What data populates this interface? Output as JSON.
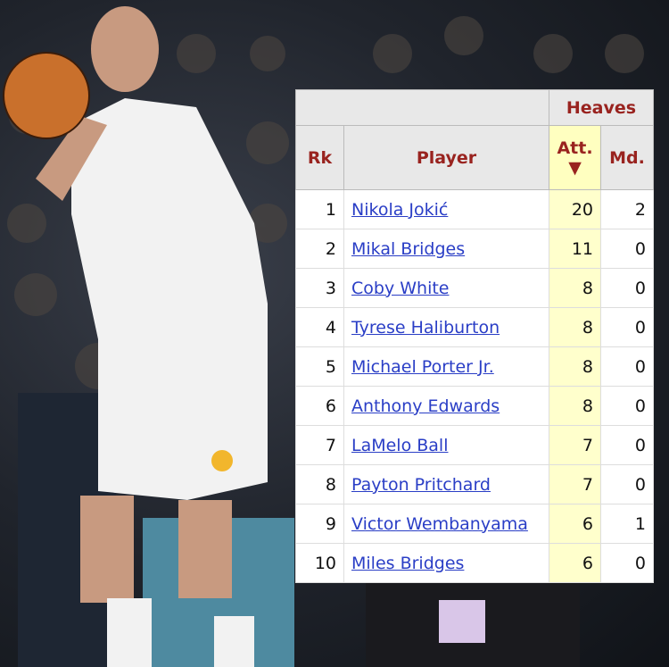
{
  "table": {
    "group_header": "Heaves",
    "columns": {
      "rank": "Rk",
      "player": "Player",
      "attempts": "Att.",
      "made": "Md."
    },
    "sort_indicator": "▼",
    "rows": [
      {
        "rk": "1",
        "player": "Nikola Jokić",
        "att": "20",
        "md": "2"
      },
      {
        "rk": "2",
        "player": "Mikal Bridges",
        "att": "11",
        "md": "0"
      },
      {
        "rk": "3",
        "player": "Coby White",
        "att": "8",
        "md": "0"
      },
      {
        "rk": "4",
        "player": "Tyrese Haliburton",
        "att": "8",
        "md": "0"
      },
      {
        "rk": "5",
        "player": "Michael Porter Jr.",
        "att": "8",
        "md": "0"
      },
      {
        "rk": "6",
        "player": "Anthony Edwards",
        "att": "8",
        "md": "0"
      },
      {
        "rk": "7",
        "player": "LaMelo Ball",
        "att": "7",
        "md": "0"
      },
      {
        "rk": "8",
        "player": "Payton Pritchard",
        "att": "7",
        "md": "0"
      },
      {
        "rk": "9",
        "player": "Victor Wembanyama",
        "att": "6",
        "md": "1"
      },
      {
        "rk": "10",
        "player": "Miles Bridges",
        "att": "6",
        "md": "0"
      }
    ]
  },
  "colors": {
    "header_text": "#99231f",
    "link": "#2a3ec6",
    "sorted_column": "#ffffcc"
  }
}
